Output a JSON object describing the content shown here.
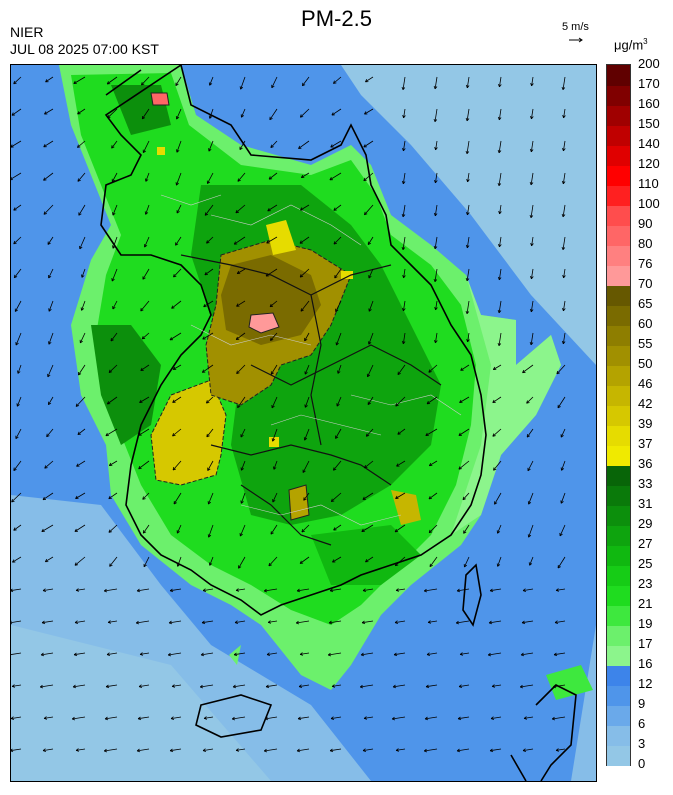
{
  "header": {
    "title": "PM-2.5",
    "agency": "NIER",
    "datetime": "JUL 08 2025 07:00 KST",
    "wind_scale": "5 m/s",
    "unit_base": "μg/m",
    "unit_exp": "3"
  },
  "legend": {
    "levels": [
      "0",
      "3",
      "6",
      "9",
      "12",
      "16",
      "17",
      "19",
      "21",
      "23",
      "25",
      "27",
      "29",
      "31",
      "33",
      "36",
      "37",
      "39",
      "42",
      "46",
      "50",
      "55",
      "60",
      "65",
      "70",
      "76",
      "80",
      "90",
      "100",
      "110",
      "120",
      "140",
      "150",
      "160",
      "170",
      "200"
    ],
    "colors": [
      "#93c7e6",
      "#86bde8",
      "#6aa9ea",
      "#4f95ea",
      "#3d84ea",
      "#8cf58c",
      "#6cf06c",
      "#3ee83e",
      "#1fdc1f",
      "#16cc16",
      "#10b810",
      "#0ea40e",
      "#0c8f0c",
      "#0a7a0a",
      "#086508",
      "#f0ea00",
      "#e6dc00",
      "#d6c800",
      "#c6b600",
      "#b4a300",
      "#a19000",
      "#8e7e00",
      "#7a6b00",
      "#665800",
      "#ff9999",
      "#ff8080",
      "#ff6666",
      "#ff4d4d",
      "#ff2020",
      "#ff0000",
      "#e00000",
      "#c00000",
      "#a00000",
      "#800000",
      "#600000"
    ]
  }
}
